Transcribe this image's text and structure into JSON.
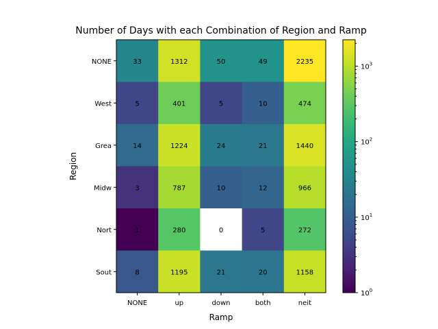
{
  "chart_data": {
    "type": "heatmap",
    "title": "Number of Days with each Combination of Region and Ramp",
    "xlabel": "Ramp",
    "ylabel": "Region",
    "x_categories": [
      "NONE",
      "up",
      "down",
      "both",
      "neit"
    ],
    "y_categories": [
      "NONE",
      "West",
      "Grea",
      "Midw",
      "Nort",
      "Sout"
    ],
    "values": [
      [
        33,
        1312,
        50,
        49,
        2235
      ],
      [
        5,
        401,
        5,
        10,
        474
      ],
      [
        14,
        1224,
        24,
        21,
        1440
      ],
      [
        3,
        787,
        10,
        12,
        966
      ],
      [
        1,
        280,
        0,
        5,
        272
      ],
      [
        8,
        1195,
        21,
        20,
        1158
      ]
    ],
    "color_scale": "log",
    "colormap": "viridis",
    "zero_color": "#ffffff",
    "colorbar": {
      "range": [
        1,
        2235
      ],
      "ticks": [
        {
          "value": 1,
          "base": "10",
          "exp": "0"
        },
        {
          "value": 10,
          "base": "10",
          "exp": "1"
        },
        {
          "value": 100,
          "base": "10",
          "exp": "2"
        },
        {
          "value": 1000,
          "base": "10",
          "exp": "3"
        }
      ]
    }
  }
}
